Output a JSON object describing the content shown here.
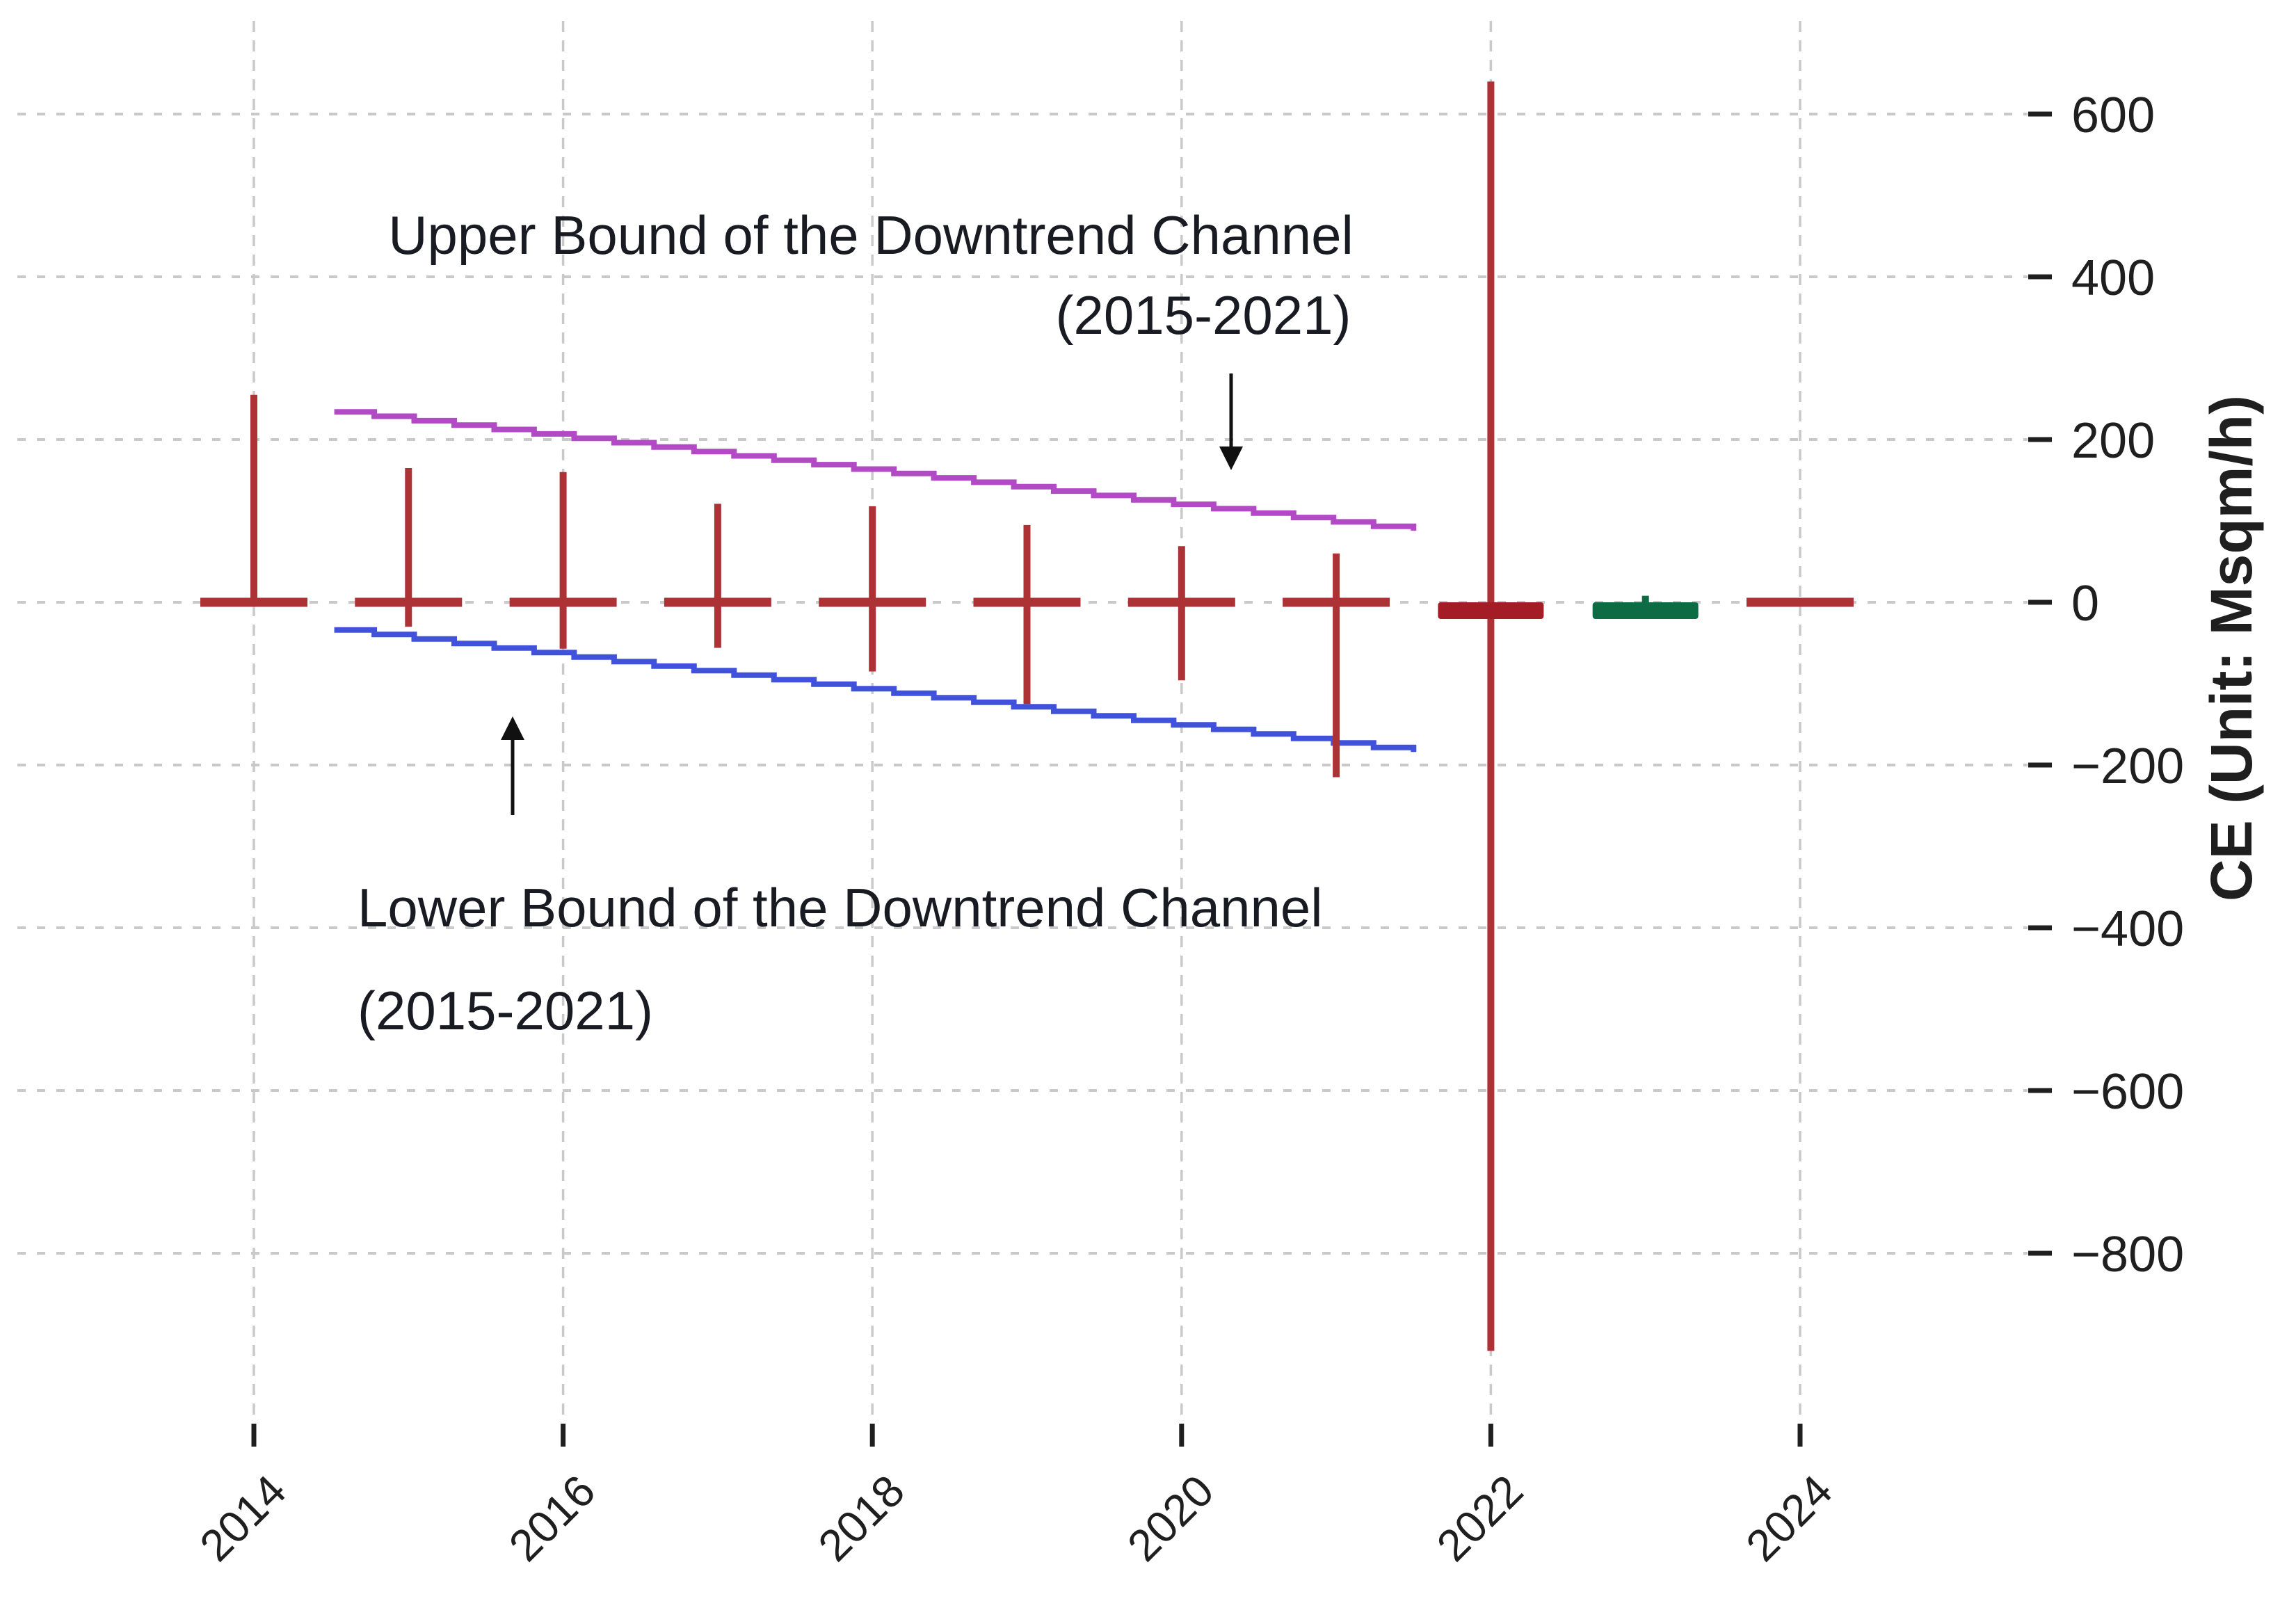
{
  "chart_data": {
    "type": "ohlc-candlestick",
    "title": "",
    "xlabel": "",
    "ylabel": "CE (Unit: Msqm/h)",
    "ylim": [
      -950,
      700
    ],
    "xlim": [
      2013.45,
      2025.35
    ],
    "grid": true,
    "legend": "none",
    "y_ticks": [
      {
        "value": 600,
        "label": "600"
      },
      {
        "value": 400,
        "label": "400"
      },
      {
        "value": 200,
        "label": "200"
      },
      {
        "value": 0,
        "label": "0"
      },
      {
        "value": -200,
        "label": "−200"
      },
      {
        "value": -400,
        "label": "−400"
      },
      {
        "value": -600,
        "label": "−600"
      },
      {
        "value": -800,
        "label": "−800"
      }
    ],
    "x_ticks": [
      {
        "value": 2014,
        "label": "2014"
      },
      {
        "value": 2016,
        "label": "2016"
      },
      {
        "value": 2018,
        "label": "2018"
      },
      {
        "value": 2020,
        "label": "2020"
      },
      {
        "value": 2022,
        "label": "2022"
      },
      {
        "value": 2024,
        "label": "2024"
      }
    ],
    "candles": [
      {
        "year": 2014,
        "open": 0,
        "close": 0,
        "high": 255,
        "low": 0,
        "direction": "flat",
        "shape": "tick"
      },
      {
        "year": 2015,
        "open": 0,
        "close": 0,
        "high": 165,
        "low": -30,
        "direction": "flat",
        "shape": "tick"
      },
      {
        "year": 2016,
        "open": 0,
        "close": 0,
        "high": 160,
        "low": -57,
        "direction": "flat",
        "shape": "tick"
      },
      {
        "year": 2017,
        "open": 0,
        "close": 0,
        "high": 121,
        "low": -56,
        "direction": "flat",
        "shape": "tick"
      },
      {
        "year": 2018,
        "open": 0,
        "close": 0,
        "high": 118,
        "low": -85,
        "direction": "flat",
        "shape": "tick"
      },
      {
        "year": 2019,
        "open": 0,
        "close": 0,
        "high": 95,
        "low": -125,
        "direction": "flat",
        "shape": "tick"
      },
      {
        "year": 2020,
        "open": 0,
        "close": 0,
        "high": 69,
        "low": -96,
        "direction": "flat",
        "shape": "tick"
      },
      {
        "year": 2021,
        "open": 0,
        "close": 0,
        "high": 60,
        "low": -215,
        "direction": "flat",
        "shape": "tick"
      },
      {
        "year": 2022,
        "open": 0,
        "close": -18,
        "high": 640,
        "low": -920,
        "direction": "down",
        "shape": "body"
      },
      {
        "year": 2023,
        "open": -18,
        "close": 0,
        "high": 8,
        "low": -18,
        "direction": "up",
        "shape": "body"
      },
      {
        "year": 2024,
        "open": 0,
        "close": 0,
        "high": 0,
        "low": 0,
        "direction": "flat",
        "shape": "tick"
      }
    ],
    "trend_lines": [
      {
        "id": "upper_bound",
        "label": "Upper Bound of the Downtrend Channel (2015-2021)",
        "x_start": 2014.52,
        "x_end": 2021.5,
        "value_start": 234,
        "value_end": 88,
        "style": "stepped"
      },
      {
        "id": "lower_bound",
        "label": "Lower Bound of the Downtrend Channel (2015-2021)",
        "x_start": 2014.52,
        "x_end": 2021.5,
        "value_start": -34,
        "value_end": -184,
        "style": "stepped"
      }
    ],
    "annotations": {
      "upper_title": "Upper Bound of the Downtrend Channel",
      "upper_years": "(2015-2021)",
      "lower_title": "Lower Bound of the Downtrend Channel",
      "lower_years": "(2015-2021)"
    },
    "colors": {
      "background": "#ffffff",
      "wick_red": "#ad3236",
      "body_red": "#a31c26",
      "body_green": "#0d6c44",
      "upper_line": "#b14ac4",
      "lower_line": "#4152da",
      "gridline": "#c9c9c9",
      "tick": "#1f1f1f",
      "tick_label": "#1f1f1f",
      "annotation_text": "#191b22",
      "arrow": "#111111"
    }
  }
}
